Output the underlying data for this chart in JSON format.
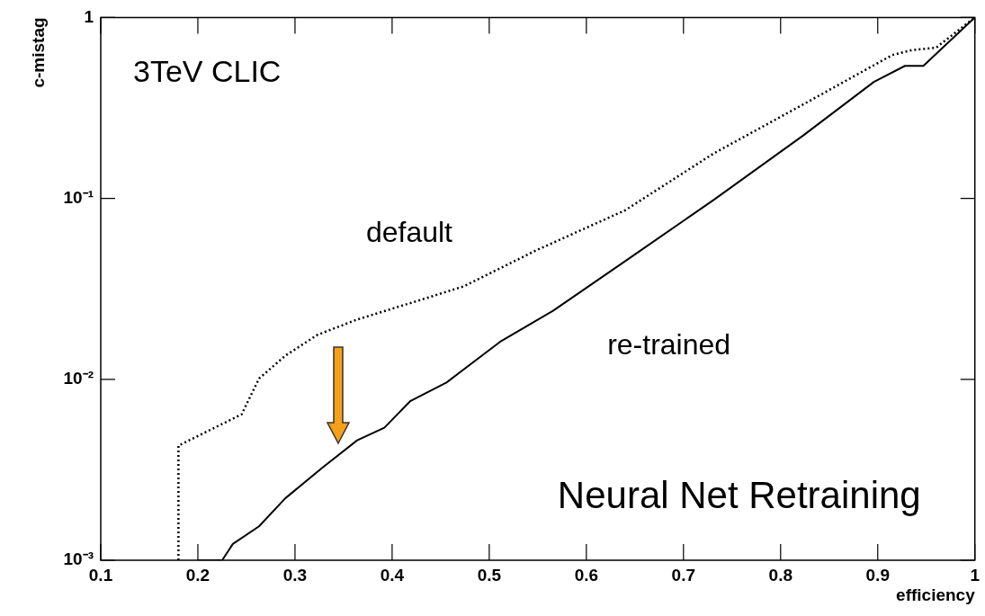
{
  "chart_data": {
    "type": "line",
    "xlabel": "efficiency",
    "ylabel": "c-mistag",
    "log": "y",
    "grid": false,
    "legend": false,
    "marker": "none",
    "xlim": [
      0.1,
      1
    ],
    "xticks": [
      0.1,
      0.2,
      0.3,
      0.4,
      0.5,
      0.6,
      0.7,
      0.8,
      0.9,
      {
        "value": 1,
        "label": "1"
      }
    ],
    "ylim": [
      0.001,
      1
    ],
    "yticks": [
      {
        "value": 0.001,
        "label": "10⁻³"
      },
      {
        "value": 0.01,
        "label": "10⁻²"
      },
      {
        "value": 0.1,
        "label": "10⁻¹"
      },
      {
        "value": 1,
        "label": "1"
      }
    ],
    "annotations": [
      "3TeV CLIC",
      "Neural Net Retraining"
    ],
    "series": [
      {
        "name": "default",
        "color": "#000000",
        "line_style": "dotted",
        "x": [
          0.18,
          0.18,
          0.245,
          0.263,
          0.29,
          0.323,
          0.364,
          0.438,
          0.474,
          0.548,
          0.64,
          0.731,
          0.823,
          0.915,
          0.935,
          0.96,
          1.0
        ],
        "values": [
          0.001,
          0.0043,
          0.0064,
          0.0101,
          0.0135,
          0.0176,
          0.0214,
          0.0284,
          0.0327,
          0.0515,
          0.086,
          0.177,
          0.33,
          0.62,
          0.66,
          0.68,
          1
        ]
      },
      {
        "name": "re-trained",
        "color": "#000000",
        "line_style": "solid",
        "x": [
          0.2,
          0.225,
          0.236,
          0.263,
          0.29,
          0.328,
          0.364,
          0.392,
          0.419,
          0.456,
          0.511,
          0.566,
          0.64,
          0.731,
          0.823,
          0.896,
          0.928,
          0.947,
          1.0
        ],
        "values": [
          0.001,
          0.001,
          0.00123,
          0.00154,
          0.0022,
          0.00324,
          0.0046,
          0.0054,
          0.0076,
          0.0096,
          0.0161,
          0.024,
          0.045,
          0.098,
          0.222,
          0.44,
          0.54,
          0.54,
          1
        ]
      }
    ]
  }
}
